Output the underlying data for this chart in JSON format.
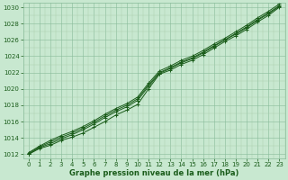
{
  "xlabel_label": "Graphe pression niveau de la mer (hPa)",
  "ylim": [
    1011.5,
    1030.5
  ],
  "xlim": [
    -0.5,
    23.5
  ],
  "yticks": [
    1012,
    1014,
    1016,
    1018,
    1020,
    1022,
    1024,
    1026,
    1028,
    1030
  ],
  "xticks": [
    0,
    1,
    2,
    3,
    4,
    5,
    6,
    7,
    8,
    9,
    10,
    11,
    12,
    13,
    14,
    15,
    16,
    17,
    18,
    19,
    20,
    21,
    22,
    23
  ],
  "bg_color": "#c8e8d0",
  "grid_major_color": "#88bb99",
  "grid_minor_color": "#aaccaa",
  "line_color": "#1a5c1a",
  "lines": [
    [
      1012.0,
      1012.7,
      1013.1,
      1013.7,
      1014.1,
      1014.6,
      1015.3,
      1016.0,
      1016.8,
      1017.4,
      1018.1,
      1020.0,
      1021.8,
      1022.3,
      1023.0,
      1023.5,
      1024.2,
      1025.0,
      1025.8,
      1026.5,
      1027.3,
      1028.2,
      1029.0,
      1030.0
    ],
    [
      1012.1,
      1012.9,
      1013.5,
      1014.1,
      1014.6,
      1015.2,
      1015.9,
      1016.7,
      1017.4,
      1018.0,
      1018.8,
      1020.5,
      1022.0,
      1022.6,
      1023.3,
      1023.8,
      1024.5,
      1025.3,
      1026.0,
      1026.8,
      1027.6,
      1028.5,
      1029.3,
      1030.2
    ],
    [
      1012.0,
      1012.8,
      1013.3,
      1013.9,
      1014.4,
      1015.0,
      1015.7,
      1016.5,
      1017.2,
      1017.8,
      1018.6,
      1020.3,
      1021.9,
      1022.5,
      1023.2,
      1023.7,
      1024.4,
      1025.2,
      1026.0,
      1026.7,
      1027.5,
      1028.4,
      1029.2,
      1030.1
    ],
    [
      1012.2,
      1013.0,
      1013.7,
      1014.3,
      1014.8,
      1015.4,
      1016.1,
      1016.9,
      1017.6,
      1018.2,
      1019.0,
      1020.7,
      1022.2,
      1022.8,
      1023.5,
      1024.0,
      1024.7,
      1025.5,
      1026.2,
      1027.0,
      1027.8,
      1028.7,
      1029.5,
      1030.4
    ]
  ]
}
